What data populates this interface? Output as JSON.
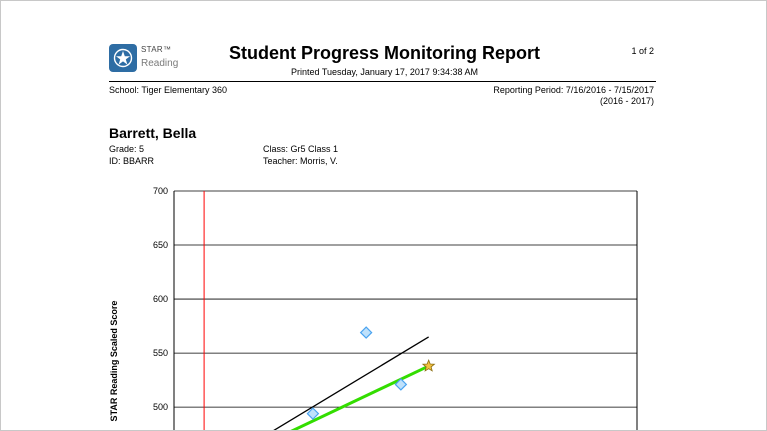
{
  "logo": {
    "line1": "STAR™",
    "line2": "Reading"
  },
  "report": {
    "title": "Student Progress Monitoring Report",
    "printed": "Printed Tuesday, January 17, 2017  9:34:38 AM",
    "page": "1 of 2",
    "school": "School: Tiger Elementary 360",
    "reporting_period": "Reporting Period: 7/16/2016 - 7/15/2017",
    "school_year": "(2016 - 2017)"
  },
  "student": {
    "name": "Barrett, Bella",
    "grade": "Grade: 5",
    "id": "ID: BBARR",
    "class": "Class: Gr5 Class 1",
    "teacher": "Teacher: Morris, V."
  },
  "chart_data": {
    "type": "scatter",
    "ylabel": "STAR Reading Scaled Score",
    "yticks": [
      500,
      550,
      600,
      650,
      700
    ],
    "ylim": [
      477,
      700
    ],
    "xlim": [
      0,
      100
    ],
    "grid": true,
    "colors": {
      "points": "#4aa3f0",
      "trend": "#33dd00",
      "goal": "#000000",
      "start": "#ff0000",
      "star": "#f2c040"
    },
    "series": [
      {
        "type": "points",
        "x": [
          30,
          41.5,
          49
        ],
        "y": [
          494,
          569,
          521
        ]
      },
      {
        "type": "trend",
        "x": [
          25,
          55
        ],
        "y": [
          477,
          538
        ]
      },
      {
        "type": "goal",
        "x": [
          21,
          55
        ],
        "y": [
          477,
          565
        ]
      },
      {
        "type": "start",
        "x": [
          6.5
        ]
      },
      {
        "type": "star",
        "x": [
          55
        ],
        "y": [
          538
        ]
      }
    ]
  }
}
